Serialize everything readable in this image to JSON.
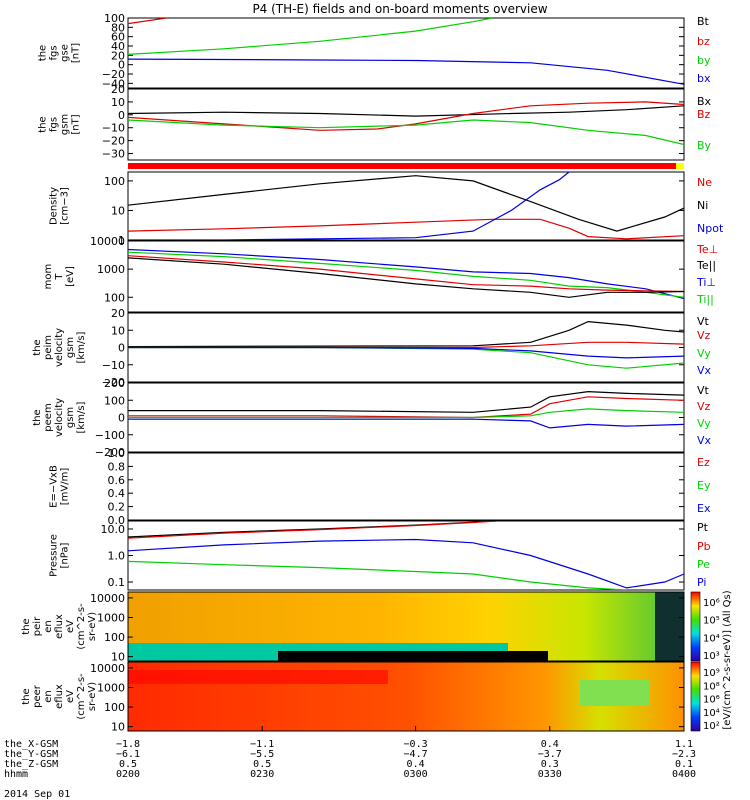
{
  "title": "P4 (TH-E) fields and on-board moments overview",
  "colors": {
    "black": "#000000",
    "red": "#e00000",
    "green": "#00d000",
    "blue": "#0000e0"
  },
  "chart_data": [
    {
      "type": "line",
      "id": "fgs-gse",
      "ylabel": [
        "the",
        "fgs",
        "gse",
        "[nT]"
      ],
      "ylim": [
        -50,
        100
      ],
      "yticks": [
        "100",
        "80",
        "60",
        "40",
        "20",
        "0",
        "−20",
        "−40"
      ],
      "ytick_values": [
        100,
        80,
        60,
        40,
        20,
        0,
        -20,
        -40
      ],
      "legend": [
        {
          "name": "Bt",
          "color": "black"
        },
        {
          "name": "bz",
          "color": "red"
        },
        {
          "name": "by",
          "color": "green"
        },
        {
          "name": "bx",
          "color": "blue"
        }
      ],
      "series": [
        {
          "name": "bz",
          "color": "red",
          "x": [
            -1.8,
            -1.6
          ],
          "y": [
            88,
            100
          ]
        },
        {
          "name": "by",
          "color": "green",
          "x": [
            -1.8,
            -1.3,
            -0.8,
            -0.3,
            0.0,
            0.1
          ],
          "y": [
            22,
            34,
            50,
            72,
            92,
            100
          ]
        },
        {
          "name": "bx",
          "color": "blue",
          "x": [
            -1.8,
            -1.3,
            -0.8,
            -0.3,
            0.3,
            0.7,
            1.1
          ],
          "y": [
            12,
            11,
            10,
            9,
            4,
            -12,
            -42
          ]
        }
      ]
    },
    {
      "type": "line",
      "id": "fgs-gsm",
      "ylabel": [
        "the",
        "fgs",
        "gsm",
        "[nT]"
      ],
      "ylim": [
        -35,
        20
      ],
      "yticks": [
        "20",
        "10",
        "0",
        "−10",
        "−20",
        "−30"
      ],
      "ytick_values": [
        20,
        10,
        0,
        -10,
        -20,
        -30
      ],
      "legend": [
        {
          "name": "Bx",
          "color": "black"
        },
        {
          "name": "Bz",
          "color": "red"
        },
        {
          "name": "By",
          "color": "green"
        }
      ],
      "series": [
        {
          "name": "Bx",
          "color": "black",
          "x": [
            -1.8,
            -1.3,
            -0.8,
            -0.3,
            0.2,
            0.5,
            0.8,
            1.1
          ],
          "y": [
            1,
            2,
            1,
            -1,
            1,
            2,
            4,
            7
          ]
        },
        {
          "name": "Bz",
          "color": "red",
          "x": [
            -1.8,
            -1.3,
            -0.8,
            -0.5,
            -0.3,
            0.0,
            0.3,
            0.6,
            0.9,
            1.1
          ],
          "y": [
            -2,
            -7,
            -12,
            -11,
            -7,
            1,
            7,
            9,
            10,
            8
          ]
        },
        {
          "name": "By",
          "color": "green",
          "x": [
            -1.8,
            -1.3,
            -0.8,
            -0.3,
            0.0,
            0.3,
            0.6,
            0.9,
            1.1
          ],
          "y": [
            -4,
            -8,
            -10,
            -8,
            -4,
            -6,
            -12,
            -16,
            -23
          ]
        }
      ]
    },
    {
      "type": "line",
      "id": "density",
      "ylabel": [
        "Density",
        "[cm−3]"
      ],
      "log": true,
      "ylim": [
        1,
        200
      ],
      "yticks": [
        "100",
        "10",
        "1"
      ],
      "ytick_values": [
        100,
        10,
        1
      ],
      "legend": [
        {
          "name": "Ne",
          "color": "red"
        },
        {
          "name": "Ni",
          "color": "black"
        },
        {
          "name": "Npot",
          "color": "blue"
        }
      ],
      "series": [
        {
          "name": "Ni",
          "color": "black",
          "x": [
            -1.8,
            -1.3,
            -0.8,
            -0.3,
            0.0,
            0.3,
            0.55,
            0.75,
            1.0,
            1.1
          ],
          "y": [
            15,
            35,
            80,
            150,
            100,
            20,
            5,
            2,
            6,
            12
          ]
        },
        {
          "name": "Ne",
          "color": "red",
          "x": [
            -1.8,
            -1.3,
            -0.8,
            -0.3,
            0.1,
            0.35,
            0.5,
            0.6,
            0.8,
            1.1
          ],
          "y": [
            2,
            2.4,
            3,
            4,
            5,
            5,
            2.5,
            1.3,
            1.1,
            1.4
          ]
        },
        {
          "name": "Npot",
          "color": "blue",
          "x": [
            -1.8,
            -1.3,
            -0.8,
            -0.3,
            0.0,
            0.2,
            0.35,
            0.45,
            0.5
          ],
          "y": [
            1,
            1,
            1.1,
            1.2,
            2,
            10,
            50,
            110,
            200
          ]
        }
      ]
    },
    {
      "type": "line",
      "id": "moms-temp",
      "ylabel": [
        "mom",
        "T",
        "[eV]"
      ],
      "log": true,
      "ylim": [
        30,
        10000
      ],
      "yticks": [
        "10000",
        "1000",
        "100"
      ],
      "ytick_values": [
        10000,
        1000,
        100
      ],
      "legend": [
        {
          "name": "Te⊥",
          "color": "red"
        },
        {
          "name": "Te||",
          "color": "black"
        },
        {
          "name": "Ti⊥",
          "color": "blue"
        },
        {
          "name": "Ti||",
          "color": "green"
        }
      ],
      "series": [
        {
          "name": "Ti⊥",
          "color": "blue",
          "x": [
            -1.8,
            -1.3,
            -0.8,
            -0.3,
            0.0,
            0.3,
            0.5,
            0.7,
            0.9,
            1.1
          ],
          "y": [
            5000,
            3500,
            2200,
            1200,
            800,
            700,
            500,
            300,
            200,
            90
          ]
        },
        {
          "name": "Ti||",
          "color": "green",
          "x": [
            -1.8,
            -1.3,
            -0.8,
            -0.3,
            0.0,
            0.3,
            0.5,
            0.7,
            0.9,
            1.1
          ],
          "y": [
            4000,
            2800,
            1600,
            900,
            550,
            400,
            250,
            220,
            150,
            100
          ]
        },
        {
          "name": "Te⊥",
          "color": "red",
          "x": [
            -1.8,
            -1.3,
            -0.8,
            -0.3,
            0.0,
            0.3,
            0.5,
            0.7,
            0.9,
            1.1
          ],
          "y": [
            3000,
            1800,
            1000,
            450,
            280,
            250,
            200,
            180,
            170,
            160
          ]
        },
        {
          "name": "Te||",
          "color": "black",
          "x": [
            -1.8,
            -1.3,
            -0.8,
            -0.3,
            0.0,
            0.3,
            0.5,
            0.7,
            0.9,
            1.1
          ],
          "y": [
            2500,
            1500,
            700,
            300,
            200,
            150,
            100,
            150,
            150,
            160
          ]
        }
      ]
    },
    {
      "type": "line",
      "id": "peim-velocity",
      "ylabel": [
        "the",
        "peim",
        "velocity",
        "gsm",
        "[km/s]"
      ],
      "ylim": [
        -20,
        20
      ],
      "yticks": [
        "20",
        "10",
        "0",
        "−10",
        "−20"
      ],
      "ytick_values": [
        20,
        10,
        0,
        -10,
        -20
      ],
      "legend": [
        {
          "name": "Vt",
          "color": "black"
        },
        {
          "name": "Vz",
          "color": "red"
        },
        {
          "name": "Vy",
          "color": "green"
        },
        {
          "name": "Vx",
          "color": "blue"
        }
      ],
      "series": [
        {
          "name": "Vt",
          "color": "black",
          "x": [
            -1.8,
            -0.8,
            0.0,
            0.3,
            0.5,
            0.6,
            0.8,
            1.0,
            1.1
          ],
          "y": [
            0.5,
            0.8,
            1,
            3,
            10,
            15,
            13,
            10,
            9
          ]
        },
        {
          "name": "Vz",
          "color": "red",
          "x": [
            -1.8,
            -0.8,
            0.0,
            0.3,
            0.6,
            0.8,
            1.1
          ],
          "y": [
            0,
            0,
            0,
            1,
            3,
            3,
            2
          ]
        },
        {
          "name": "Vy",
          "color": "green",
          "x": [
            -1.8,
            -0.8,
            0.0,
            0.3,
            0.6,
            0.8,
            1.1
          ],
          "y": [
            0,
            0,
            -1,
            -3,
            -10,
            -12,
            -9
          ]
        },
        {
          "name": "Vx",
          "color": "blue",
          "x": [
            -1.8,
            -0.8,
            0.0,
            0.3,
            0.6,
            0.8,
            1.1
          ],
          "y": [
            0,
            0,
            -0.5,
            -2,
            -5,
            -6,
            -5
          ]
        }
      ]
    },
    {
      "type": "line",
      "id": "peem-velocity",
      "ylabel": [
        "the",
        "peem",
        "velocity",
        "gsm",
        "[km/s]"
      ],
      "ylim": [
        -200,
        200
      ],
      "yticks": [
        "200",
        "100",
        "0",
        "−100",
        "−200"
      ],
      "ytick_values": [
        200,
        100,
        0,
        -100,
        -200
      ],
      "legend": [
        {
          "name": "Vt",
          "color": "black"
        },
        {
          "name": "Vz",
          "color": "red"
        },
        {
          "name": "Vy",
          "color": "green"
        },
        {
          "name": "Vx",
          "color": "blue"
        }
      ],
      "series": [
        {
          "name": "Vt",
          "color": "black",
          "x": [
            -1.8,
            -0.8,
            0.0,
            0.3,
            0.4,
            0.6,
            0.8,
            1.1
          ],
          "y": [
            40,
            40,
            30,
            60,
            120,
            150,
            140,
            130
          ]
        },
        {
          "name": "Vz",
          "color": "red",
          "x": [
            -1.8,
            -0.8,
            0.0,
            0.3,
            0.4,
            0.6,
            0.8,
            1.1
          ],
          "y": [
            10,
            10,
            0,
            20,
            80,
            120,
            110,
            100
          ]
        },
        {
          "name": "Vy",
          "color": "green",
          "x": [
            -1.8,
            -0.8,
            0.0,
            0.3,
            0.4,
            0.6,
            0.8,
            1.1
          ],
          "y": [
            0,
            0,
            0,
            10,
            30,
            50,
            40,
            30
          ]
        },
        {
          "name": "Vx",
          "color": "blue",
          "x": [
            -1.8,
            -0.8,
            0.0,
            0.3,
            0.4,
            0.6,
            0.8,
            1.1
          ],
          "y": [
            -10,
            -10,
            -10,
            -20,
            -60,
            -40,
            -50,
            -40
          ]
        }
      ]
    },
    {
      "type": "line",
      "id": "efield",
      "ylabel": [
        "E=−VxB",
        "[mV/m]"
      ],
      "ylim": [
        0,
        1
      ],
      "yticks": [
        "1.0",
        "0.8",
        "0.6",
        "0.4",
        "0.2",
        "0.0"
      ],
      "ytick_values": [
        1.0,
        0.8,
        0.6,
        0.4,
        0.2,
        0.0
      ],
      "legend": [
        {
          "name": "Ez",
          "color": "red"
        },
        {
          "name": "Ey",
          "color": "green"
        },
        {
          "name": "Ex",
          "color": "blue"
        }
      ],
      "series": []
    },
    {
      "type": "line",
      "id": "pressure",
      "ylabel": [
        "Pressure",
        "[nPa]"
      ],
      "log": true,
      "ylim": [
        0.05,
        20
      ],
      "yticks": [
        "10.0",
        "1.0",
        "0.1"
      ],
      "ytick_values": [
        10,
        1,
        0.1
      ],
      "legend": [
        {
          "name": "Pt",
          "color": "black"
        },
        {
          "name": "Pb",
          "color": "red"
        },
        {
          "name": "Pe",
          "color": "green"
        },
        {
          "name": "Pi",
          "color": "blue"
        }
      ],
      "series": [
        {
          "name": "Pt",
          "color": "black",
          "x": [
            -1.8,
            -1.3,
            -0.8,
            -0.3,
            0.0,
            0.12
          ],
          "y": [
            5,
            7.5,
            10,
            14,
            18,
            20
          ]
        },
        {
          "name": "Pb",
          "color": "red",
          "x": [
            -1.8,
            -1.3,
            -0.8,
            -0.3,
            0.0,
            0.12
          ],
          "y": [
            4.5,
            7,
            9.5,
            13.5,
            17.5,
            20
          ]
        },
        {
          "name": "Pi",
          "color": "blue",
          "x": [
            -1.8,
            -1.3,
            -0.8,
            -0.3,
            0.0,
            0.3,
            0.6,
            0.8,
            1.0,
            1.1
          ],
          "y": [
            1.5,
            2.5,
            3.5,
            4,
            3,
            1,
            0.2,
            0.06,
            0.1,
            0.2
          ]
        },
        {
          "name": "Pe",
          "color": "green",
          "x": [
            -1.8,
            -1.3,
            -0.8,
            -0.3,
            0.0,
            0.3,
            0.6,
            0.8
          ],
          "y": [
            0.6,
            0.45,
            0.35,
            0.25,
            0.2,
            0.1,
            0.06,
            0.05
          ]
        }
      ]
    },
    {
      "type": "heatmap",
      "id": "peir-flux",
      "ylabel": [
        "the",
        "peir",
        "en",
        "eflux",
        "eV",
        "(cm^2-s-",
        "sr-eV)"
      ],
      "yticks": [
        "10000",
        "1000",
        "100",
        "10"
      ],
      "ytick_values": [
        10000,
        1000,
        100,
        10
      ],
      "colorbar": {
        "ticks": [
          "10⁶",
          "10⁵",
          "10⁴",
          "10³"
        ]
      }
    },
    {
      "type": "heatmap",
      "id": "peer-flux",
      "ylabel": [
        "the",
        "peer",
        "en",
        "eflux",
        "eV",
        "(cm^2-s-",
        "sr-eV)"
      ],
      "yticks": [
        "10000",
        "1000",
        "100",
        "10"
      ],
      "ytick_values": [
        10000,
        1000,
        100,
        10
      ],
      "colorbar": {
        "ticks": [
          "10⁹",
          "10⁸",
          "10⁶",
          "10⁴",
          "10²"
        ]
      }
    }
  ],
  "colorbar_label": "[eV/(cm^2-s-sr-eV)] (All Qs)",
  "x_axis": {
    "ticks": [
      -1.8,
      -1.1,
      -0.3,
      0.4,
      1.1
    ],
    "rows": [
      {
        "label": "the_X-GSM",
        "values": [
          "−1.8",
          "−1.1",
          "−0.3",
          "0.4",
          "1.1"
        ]
      },
      {
        "label": "the_Y-GSM",
        "values": [
          "−6.1",
          "−5.5",
          "−4.7",
          "−3.7",
          "−2.3"
        ]
      },
      {
        "label": "the_Z-GSM",
        "values": [
          "0.5",
          "0.5",
          "0.4",
          "0.3",
          "0.1"
        ]
      },
      {
        "label": "hhmm",
        "values": [
          "0200",
          "0230",
          "0300",
          "0330",
          "0400"
        ]
      }
    ],
    "date": "2014 Sep 01"
  }
}
